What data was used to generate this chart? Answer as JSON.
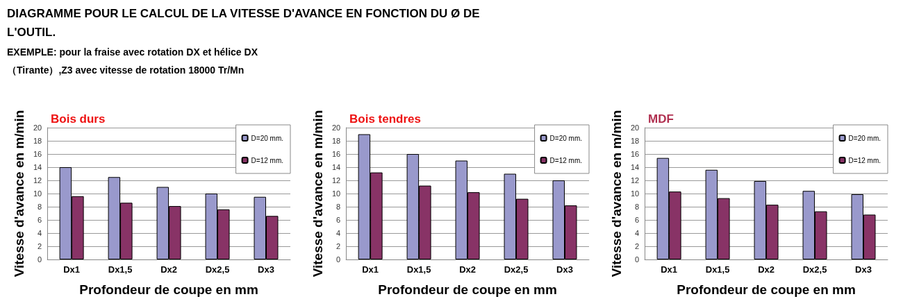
{
  "chart_data": [
    {
      "type": "other",
      "title": "DIAGRAMME POUR LE CALCUL DE LA VITESSE D'AVANCE EN FONCTION DU Ø DE L'OUTIL.",
      "annotations": [
        "EXEMPLE: pour la fraise avec rotation DX et hélice DX",
        "（Tirante）,Z3 avec vitesse de rotation 18000 Tr/Mn"
      ]
    },
    {
      "type": "bar",
      "title": "Bois durs",
      "xlabel": "Profondeur de coupe en mm",
      "ylabel": "Vitesse d'avance en m/min",
      "categories": [
        "Dx1",
        "Dx1,5",
        "Dx2",
        "Dx2,5",
        "Dx3"
      ],
      "series": [
        {
          "name": "D=20 mm.",
          "color": "#9999cc",
          "values": [
            14,
            12.5,
            11,
            10,
            9.5
          ]
        },
        {
          "name": "D=12 mm.",
          "color": "#883366",
          "values": [
            9.6,
            8.6,
            8.1,
            7.6,
            6.6
          ]
        }
      ],
      "ylim": [
        0,
        20
      ],
      "yticks": [
        0,
        2,
        4,
        6,
        8,
        10,
        12,
        14,
        16,
        18,
        20
      ],
      "grid": "y",
      "legend": "top right"
    },
    {
      "type": "bar",
      "title": "Bois tendres",
      "xlabel": "Profondeur de coupe en mm",
      "ylabel": "Vitesse d'avance en m/min",
      "categories": [
        "Dx1",
        "Dx1,5",
        "Dx2",
        "Dx2,5",
        "Dx3"
      ],
      "series": [
        {
          "name": "D=20 mm.",
          "color": "#9999cc",
          "values": [
            19,
            16,
            15,
            13,
            12
          ]
        },
        {
          "name": "D=12 mm.",
          "color": "#883366",
          "values": [
            13.2,
            11.2,
            10.2,
            9.2,
            8.2
          ]
        }
      ],
      "ylim": [
        0,
        20
      ],
      "yticks": [
        0,
        2,
        4,
        6,
        8,
        10,
        12,
        14,
        16,
        18,
        20
      ],
      "grid": "y",
      "legend": "top right"
    },
    {
      "type": "bar",
      "title": "MDF",
      "xlabel": "Profondeur de coupe en mm",
      "ylabel": "Vitesse d'avance en m/min",
      "categories": [
        "Dx1",
        "Dx1,5",
        "Dx2",
        "Dx2,5",
        "Dx3"
      ],
      "series": [
        {
          "name": "D=20 mm.",
          "color": "#9999cc",
          "values": [
            15.4,
            13.6,
            11.9,
            10.4,
            9.9
          ]
        },
        {
          "name": "D=12 mm.",
          "color": "#883366",
          "values": [
            10.3,
            9.3,
            8.3,
            7.3,
            6.8
          ]
        }
      ],
      "ylim": [
        0,
        20
      ],
      "yticks": [
        0,
        2,
        4,
        6,
        8,
        10,
        12,
        14,
        16,
        18,
        20
      ],
      "grid": "y",
      "legend": "top right"
    }
  ]
}
